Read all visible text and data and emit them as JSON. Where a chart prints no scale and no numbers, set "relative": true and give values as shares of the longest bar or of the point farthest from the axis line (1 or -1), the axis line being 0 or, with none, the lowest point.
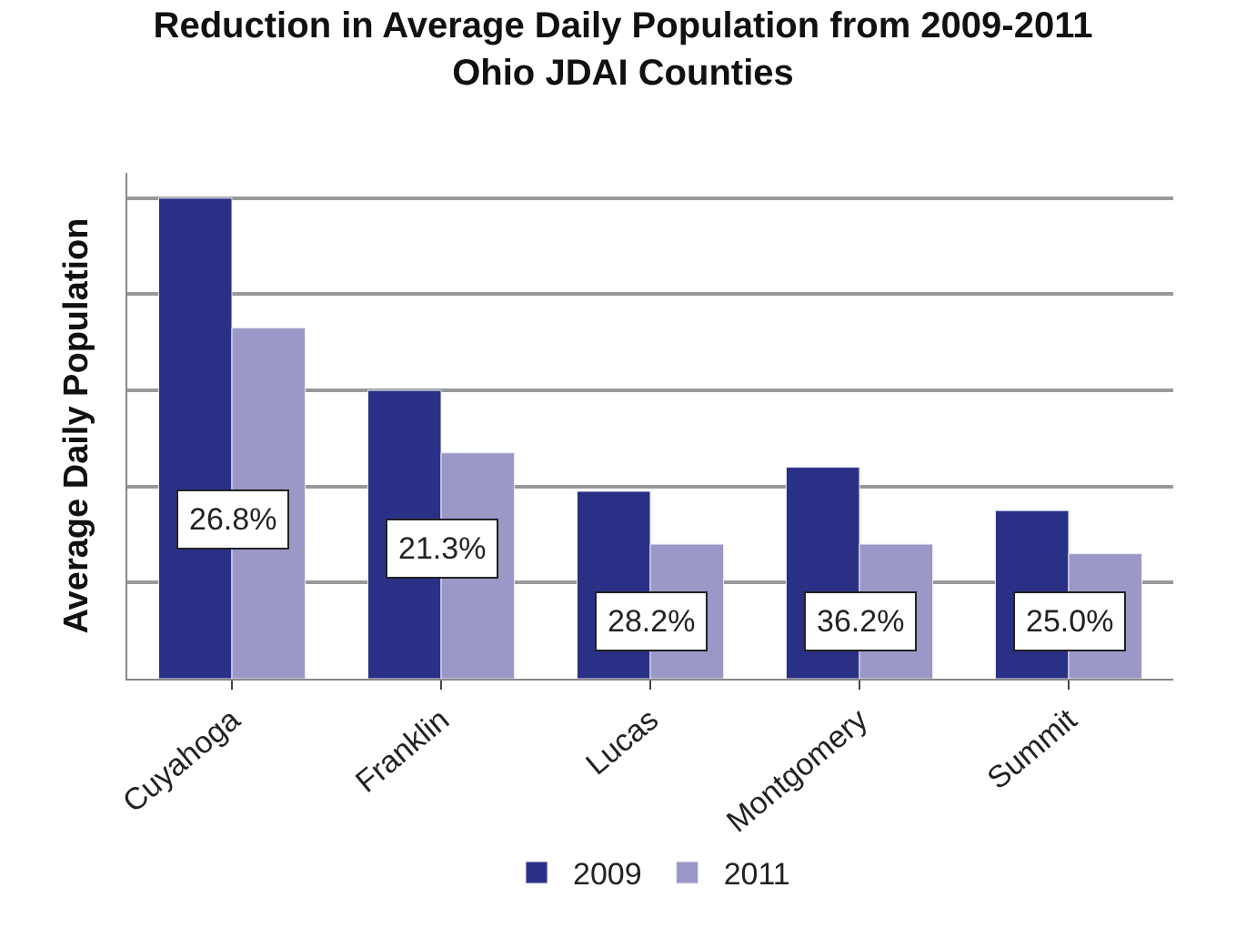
{
  "chart_data": {
    "type": "bar",
    "title": "Reduction in Average Daily Population from 2009-2011\nOhio JDAI Counties",
    "ylabel": "Average Daily Population",
    "relative": true,
    "categories": [
      "Cuyahoga",
      "Franklin",
      "Lucas",
      "Montgomery",
      "Summit"
    ],
    "series": [
      {
        "name": "2009",
        "color": "#2b3087",
        "values": [
          1,
          0.6,
          0.39,
          0.44,
          0.35
        ]
      },
      {
        "name": "2011",
        "color": "#9b97c6",
        "values": [
          0.73,
          0.47,
          0.28,
          0.28,
          0.26
        ]
      }
    ],
    "annotations": [
      "26.8%",
      "21.3%",
      "28.2%",
      "36.2%",
      "25.0%"
    ],
    "grid": "y",
    "legend": "bottom"
  }
}
